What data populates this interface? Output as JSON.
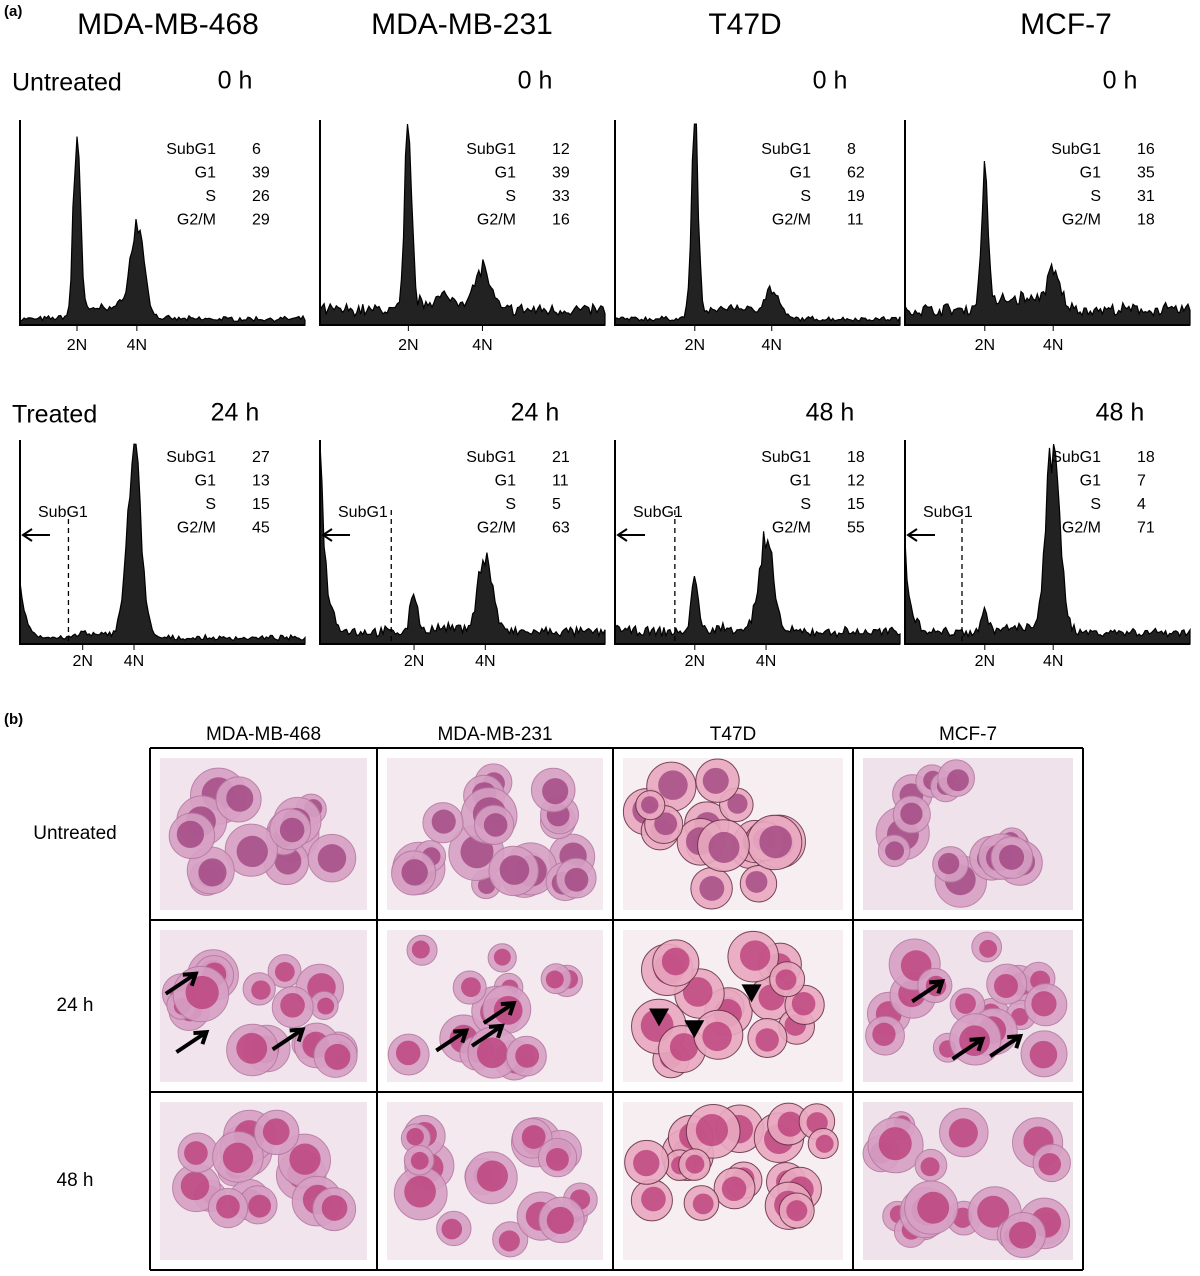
{
  "panel_a": {
    "label": "(a)",
    "cell_lines": [
      "MDA-MB-468",
      "MDA-MB-231",
      "T47D",
      "MCF-7"
    ],
    "rows": [
      {
        "label": "Untreated",
        "plots": [
          {
            "time": "0 h",
            "stats": [
              [
                "SubG1",
                6
              ],
              [
                "G1",
                39
              ],
              [
                "S",
                26
              ],
              [
                "G2/M",
                29
              ]
            ],
            "ticks": [
              "2N",
              "4N"
            ]
          },
          {
            "time": "0 h",
            "stats": [
              [
                "SubG1",
                12
              ],
              [
                "G1",
                39
              ],
              [
                "S",
                33
              ],
              [
                "G2/M",
                16
              ]
            ],
            "ticks": [
              "2N",
              "4N"
            ]
          },
          {
            "time": "0 h",
            "stats": [
              [
                "SubG1",
                8
              ],
              [
                "G1",
                62
              ],
              [
                "S",
                19
              ],
              [
                "G2/M",
                11
              ]
            ],
            "ticks": [
              "2N",
              "4N"
            ]
          },
          {
            "time": "0 h",
            "stats": [
              [
                "SubG1",
                16
              ],
              [
                "G1",
                35
              ],
              [
                "S",
                31
              ],
              [
                "G2/M",
                18
              ]
            ],
            "ticks": [
              "2N",
              "4N"
            ]
          }
        ]
      },
      {
        "label": "Treated",
        "plots": [
          {
            "time": "24 h",
            "stats": [
              [
                "SubG1",
                27
              ],
              [
                "G1",
                13
              ],
              [
                "S",
                15
              ],
              [
                "G2/M",
                45
              ]
            ],
            "ticks": [
              "2N",
              "4N"
            ],
            "marker": "SubG1"
          },
          {
            "time": "24 h",
            "stats": [
              [
                "SubG1",
                21
              ],
              [
                "G1",
                11
              ],
              [
                "S",
                5
              ],
              [
                "G2/M",
                63
              ]
            ],
            "ticks": [
              "2N",
              "4N"
            ],
            "marker": "SubG1"
          },
          {
            "time": "48 h",
            "stats": [
              [
                "SubG1",
                18
              ],
              [
                "G1",
                12
              ],
              [
                "S",
                15
              ],
              [
                "G2/M",
                55
              ]
            ],
            "ticks": [
              "2N",
              "4N"
            ],
            "marker": "SubG1"
          },
          {
            "time": "48 h",
            "stats": [
              [
                "SubG1",
                18
              ],
              [
                "G1",
                7
              ],
              [
                "S",
                4
              ],
              [
                "G2/M",
                71
              ]
            ],
            "ticks": [
              "2N",
              "4N"
            ],
            "marker": "SubG1"
          }
        ]
      }
    ]
  },
  "panel_b": {
    "label": "(b)",
    "columns": [
      "MDA-MB-468",
      "MDA-MB-231",
      "T47D",
      "MCF-7"
    ],
    "rows": [
      "Untreated",
      "24 h",
      "48 h"
    ]
  }
}
